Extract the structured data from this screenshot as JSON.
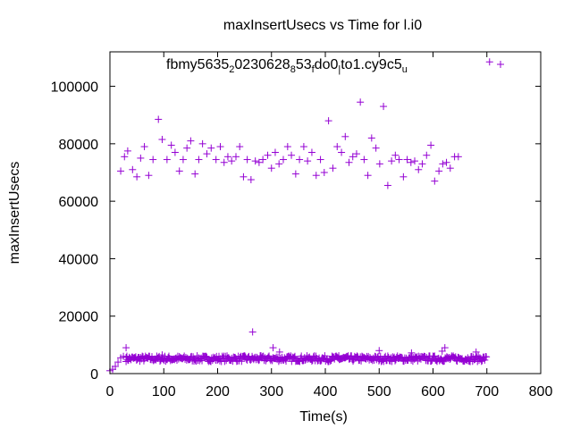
{
  "chart_data": {
    "type": "scatter",
    "title": "maxInsertUsecs vs Time for l.i0",
    "xlabel": "Time(s)",
    "ylabel": "maxInsertUsecs",
    "xlim": [
      0,
      800
    ],
    "ylim": [
      0,
      112000
    ],
    "x_ticks": [
      "0",
      "100",
      "200",
      "300",
      "400",
      "500",
      "600",
      "700",
      "800"
    ],
    "y_ticks": [
      "0",
      "20000",
      "40000",
      "60000",
      "80000",
      "100000"
    ],
    "grid": false,
    "legend_position": "top",
    "marker_color": "#9400d3",
    "legend": {
      "parts": [
        {
          "text": "fbmy5635",
          "sub": false
        },
        {
          "text": "2",
          "sub": true
        },
        {
          "text": "0230628",
          "sub": false
        },
        {
          "text": "8",
          "sub": true
        },
        {
          "text": "53",
          "sub": false
        },
        {
          "text": "f",
          "sub": true
        },
        {
          "text": "do0",
          "sub": false
        },
        {
          "text": "|",
          "sub": true
        },
        {
          "text": "to1.cy9c5",
          "sub": false
        },
        {
          "text": "u",
          "sub": true
        }
      ]
    },
    "series": [
      {
        "name": "fbmy5635_20230628_853_fdo0_lto1.cy9c5_u",
        "high_points": [
          [
            20,
            70500
          ],
          [
            27,
            75500
          ],
          [
            33,
            77500
          ],
          [
            42,
            71000
          ],
          [
            50,
            68500
          ],
          [
            57,
            75000
          ],
          [
            64,
            79000
          ],
          [
            72,
            69000
          ],
          [
            80,
            74500
          ],
          [
            90,
            88500
          ],
          [
            97,
            81500
          ],
          [
            106,
            74500
          ],
          [
            114,
            79500
          ],
          [
            121,
            77000
          ],
          [
            129,
            70500
          ],
          [
            136,
            74500
          ],
          [
            143,
            78500
          ],
          [
            150,
            81000
          ],
          [
            158,
            69500
          ],
          [
            165,
            74500
          ],
          [
            172,
            80000
          ],
          [
            180,
            76500
          ],
          [
            188,
            78500
          ],
          [
            197,
            74500
          ],
          [
            205,
            79000
          ],
          [
            212,
            73500
          ],
          [
            219,
            75500
          ],
          [
            226,
            74000
          ],
          [
            234,
            75500
          ],
          [
            241,
            79000
          ],
          [
            248,
            68500
          ],
          [
            255,
            74500
          ],
          [
            262,
            67500
          ],
          [
            270,
            74000
          ],
          [
            277,
            73500
          ],
          [
            284,
            74500
          ],
          [
            293,
            76000
          ],
          [
            300,
            71500
          ],
          [
            307,
            77000
          ],
          [
            314,
            73000
          ],
          [
            322,
            74500
          ],
          [
            330,
            79000
          ],
          [
            337,
            76000
          ],
          [
            345,
            69500
          ],
          [
            352,
            74500
          ],
          [
            360,
            79000
          ],
          [
            367,
            74000
          ],
          [
            375,
            77000
          ],
          [
            383,
            69000
          ],
          [
            391,
            74500
          ],
          [
            398,
            70000
          ],
          [
            406,
            88000
          ],
          [
            414,
            71500
          ],
          [
            422,
            79000
          ],
          [
            430,
            77000
          ],
          [
            437,
            82500
          ],
          [
            444,
            73500
          ],
          [
            451,
            75500
          ],
          [
            458,
            76500
          ],
          [
            465,
            94500
          ],
          [
            472,
            74500
          ],
          [
            479,
            69000
          ],
          [
            486,
            82000
          ],
          [
            494,
            78500
          ],
          [
            501,
            73000
          ],
          [
            508,
            93000
          ],
          [
            516,
            65500
          ],
          [
            523,
            74000
          ],
          [
            530,
            76000
          ],
          [
            537,
            74500
          ],
          [
            545,
            68500
          ],
          [
            552,
            74500
          ],
          [
            559,
            73500
          ],
          [
            566,
            74000
          ],
          [
            573,
            71000
          ],
          [
            580,
            73000
          ],
          [
            588,
            76000
          ],
          [
            596,
            79500
          ],
          [
            603,
            67000
          ],
          [
            611,
            70500
          ],
          [
            618,
            73000
          ],
          [
            625,
            73500
          ],
          [
            632,
            71500
          ],
          [
            640,
            75500
          ],
          [
            647,
            75500
          ],
          [
            705,
            108500
          ]
        ],
        "spikes": [
          [
            30,
            9000
          ],
          [
            97,
            6500
          ],
          [
            265,
            14500
          ],
          [
            303,
            9000
          ],
          [
            315,
            7500
          ],
          [
            425,
            6200
          ],
          [
            500,
            8000
          ],
          [
            560,
            7200
          ],
          [
            617,
            7800
          ],
          [
            622,
            9000
          ],
          [
            680,
            7500
          ]
        ],
        "low_band": {
          "x_range": [
            5,
            700
          ],
          "ramp": [
            [
              0,
              1000
            ],
            [
              5,
              1500
            ],
            [
              10,
              2500
            ],
            [
              15,
              4000
            ],
            [
              20,
              5500
            ],
            [
              25,
              6000
            ],
            [
              30,
              5600
            ]
          ],
          "y_range": [
            4200,
            6200
          ]
        }
      }
    ]
  }
}
